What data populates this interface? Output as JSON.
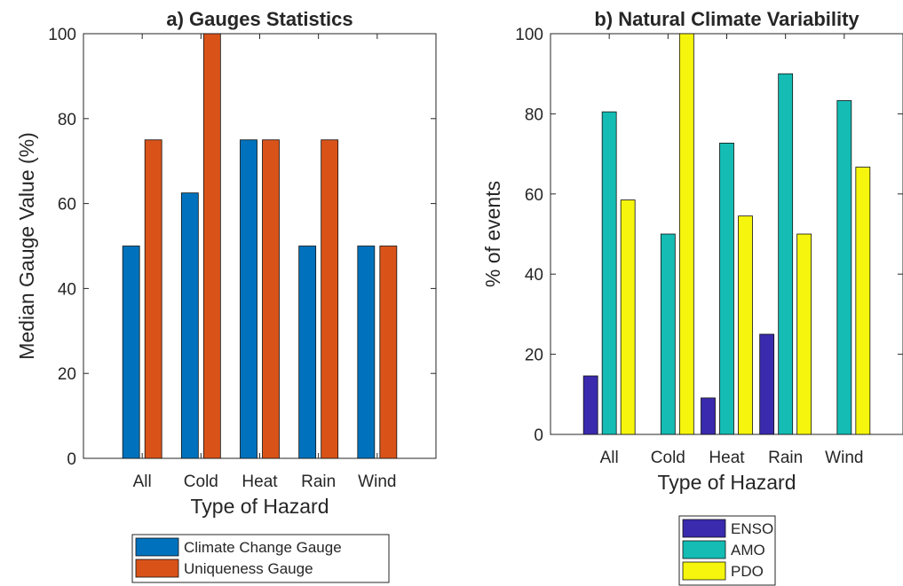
{
  "chart_data": [
    {
      "type": "bar",
      "title": "a) Gauges Statistics",
      "xlabel": "Type of Hazard",
      "ylabel": "Median Gauge Value (%)",
      "ylim": [
        0,
        100
      ],
      "yticks": [
        "0",
        "20",
        "40",
        "60",
        "80",
        "100"
      ],
      "categories": [
        "All",
        "Cold",
        "Heat",
        "Rain",
        "Wind"
      ],
      "legend_position": "bottom-outside",
      "grid": false,
      "series": [
        {
          "name": "Climate Change Gauge",
          "color": "#0072BD",
          "values": [
            50,
            62.5,
            75,
            50,
            50
          ]
        },
        {
          "name": "Uniqueness Gauge",
          "color": "#D95319",
          "values": [
            75,
            100,
            75,
            75,
            50
          ]
        }
      ]
    },
    {
      "type": "bar",
      "title": "b) Natural Climate Variability",
      "xlabel": "Type of Hazard",
      "ylabel": "% of events",
      "ylim": [
        0,
        100
      ],
      "yticks": [
        "0",
        "20",
        "40",
        "60",
        "80",
        "100"
      ],
      "categories": [
        "All",
        "Cold",
        "Heat",
        "Rain",
        "Wind"
      ],
      "legend_position": "bottom-outside",
      "grid": false,
      "series": [
        {
          "name": "ENSO",
          "color": "#3A2AAE",
          "values": [
            14.6,
            0,
            9.1,
            25,
            0
          ]
        },
        {
          "name": "AMO",
          "color": "#14BCB4",
          "values": [
            80.5,
            50,
            72.7,
            90,
            83.3
          ]
        },
        {
          "name": "PDO",
          "color": "#F5F50D",
          "values": [
            58.5,
            100,
            54.5,
            50,
            66.7
          ]
        }
      ]
    }
  ]
}
